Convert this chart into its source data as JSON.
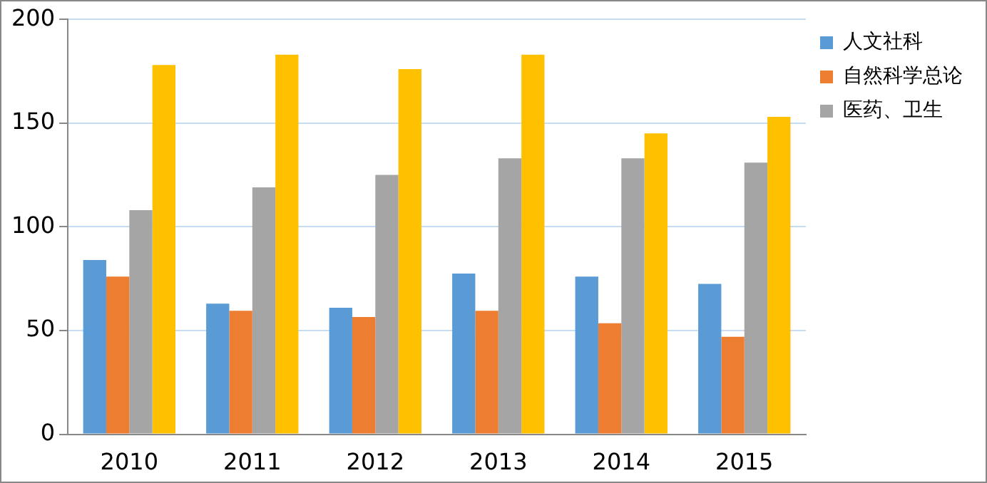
{
  "chart_data": {
    "type": "bar",
    "categories": [
      "2010",
      "2011",
      "2012",
      "2013",
      "2014",
      "2015"
    ],
    "series": [
      {
        "name": "人文社科",
        "color": "#5b9bd5",
        "values": [
          84,
          63,
          61,
          77.5,
          76,
          72.5
        ]
      },
      {
        "name": "自然科学总论",
        "color": "#ed7d31",
        "values": [
          76,
          59.5,
          56.5,
          59.5,
          53.5,
          47
        ]
      },
      {
        "name": "医药、卫生",
        "color": "#a5a5a5",
        "values": [
          108,
          119,
          125,
          133,
          133,
          131
        ]
      },
      {
        "color": "#ffc000",
        "values": [
          178,
          183,
          176,
          183,
          145,
          153
        ]
      }
    ],
    "ylim": [
      0,
      200
    ],
    "yticks": [
      0,
      50,
      100,
      150,
      200
    ],
    "grid": "y",
    "legend": "right"
  }
}
